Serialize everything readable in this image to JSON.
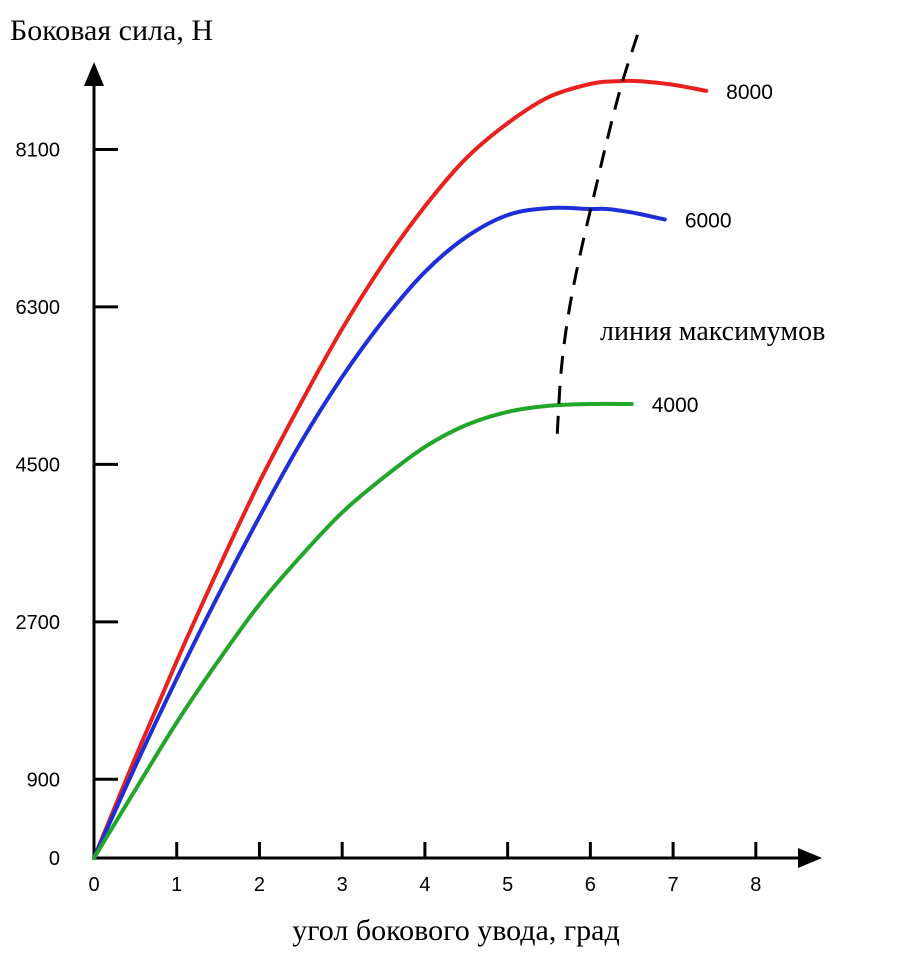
{
  "chart_data": {
    "type": "line",
    "title": "",
    "ylabel": "Боковая сила, Н",
    "xlabel": "угол бокового увода, град",
    "xlim": [
      0,
      8.8
    ],
    "ylim": [
      0,
      9100
    ],
    "x_ticks": [
      0,
      1,
      2,
      3,
      4,
      5,
      6,
      7,
      8
    ],
    "x_tick_labels": [
      "0",
      "1",
      "2",
      "3",
      "4",
      "5",
      "6",
      "7",
      "8"
    ],
    "y_ticks": [
      0,
      900,
      2700,
      4500,
      6300,
      8100
    ],
    "y_tick_labels": [
      "0",
      "900",
      "2700",
      "4500",
      "6300",
      "8100"
    ],
    "grid": false,
    "legend": "none",
    "series": [
      {
        "name": "8000",
        "color": "#e8201e",
        "x": [
          0,
          0.5,
          1,
          1.5,
          2,
          2.5,
          3,
          3.5,
          4,
          4.5,
          5,
          5.5,
          6,
          6.3,
          6.6,
          7,
          7.4
        ],
        "y": [
          0,
          1150,
          2250,
          3300,
          4300,
          5200,
          6050,
          6800,
          7450,
          8000,
          8400,
          8700,
          8850,
          8880,
          8880,
          8840,
          8770
        ]
      },
      {
        "name": "6000",
        "color": "#1e2fd8",
        "x": [
          0,
          0.5,
          1,
          1.5,
          2,
          2.5,
          3,
          3.5,
          4,
          4.5,
          5,
          5.5,
          6,
          6.2,
          6.5,
          6.9
        ],
        "y": [
          0,
          1050,
          2050,
          3000,
          3900,
          4750,
          5500,
          6150,
          6700,
          7100,
          7350,
          7430,
          7420,
          7420,
          7380,
          7300
        ]
      },
      {
        "name": "4000",
        "color": "#22a62a",
        "x": [
          0,
          0.5,
          1,
          1.5,
          2,
          2.5,
          3,
          3.5,
          4,
          4.5,
          5,
          5.5,
          6,
          6.5
        ],
        "y": [
          0,
          780,
          1550,
          2250,
          2900,
          3450,
          3950,
          4350,
          4700,
          4950,
          5100,
          5170,
          5190,
          5190
        ]
      }
    ],
    "annotations": [
      {
        "text": "линия максимумов",
        "style": "dashed",
        "color": "#000000",
        "x": [
          5.6,
          5.65,
          5.75,
          5.9,
          6.05,
          6.2,
          6.38,
          6.6
        ],
        "y": [
          4850,
          5600,
          6300,
          7000,
          7600,
          8200,
          8850,
          9500
        ]
      }
    ]
  }
}
